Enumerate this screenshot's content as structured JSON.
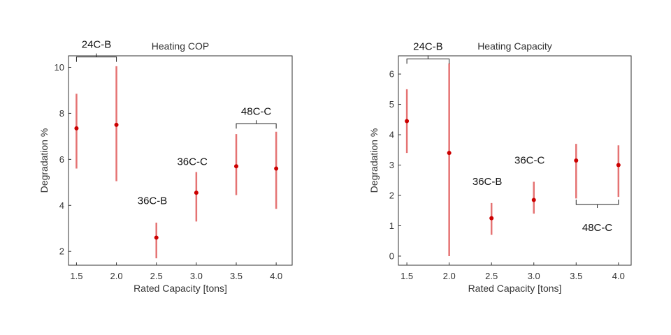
{
  "chart_data": [
    {
      "type": "scatter",
      "title": "Heating COP",
      "xlabel": "Rated Capacity [tons]",
      "ylabel": "Degradation %",
      "xlim": [
        1.4,
        4.2
      ],
      "ylim": [
        1.4,
        10.5
      ],
      "xticks": [
        "1.5",
        "2.0",
        "2.5",
        "3.0",
        "3.5",
        "4.0"
      ],
      "yticks": [
        "2",
        "4",
        "6",
        "8",
        "10"
      ],
      "grid": false,
      "legend": "none",
      "colors": {
        "errorbar": "#e57373",
        "point": "#cc0000"
      },
      "series": [
        {
          "x": [
            1.5,
            2.0,
            2.5,
            3.0,
            3.5,
            4.0
          ],
          "y": [
            7.35,
            7.5,
            2.6,
            4.55,
            5.7,
            5.6
          ],
          "y_low": [
            5.6,
            5.05,
            1.7,
            3.3,
            4.45,
            3.85
          ],
          "y_high": [
            8.85,
            10.05,
            3.25,
            5.45,
            7.1,
            7.2
          ]
        }
      ],
      "annotations": [
        {
          "text": "24C-B",
          "x_from": 1.5,
          "x_to": 2.0,
          "y": 10.45,
          "bracket": "top"
        },
        {
          "text": "36C-B",
          "x": 2.45,
          "y": 4.05
        },
        {
          "text": "36C-C",
          "x": 2.95,
          "y": 5.75
        },
        {
          "text": "48C-C",
          "x_from": 3.5,
          "x_to": 4.0,
          "y": 7.55,
          "bracket": "top"
        }
      ]
    },
    {
      "type": "scatter",
      "title": "Heating Capacity",
      "xlabel": "Rated Capacity [tons]",
      "ylabel": "Degradation %",
      "xlim": [
        1.4,
        4.15
      ],
      "ylim": [
        -0.3,
        6.6
      ],
      "xticks": [
        "1.5",
        "2.0",
        "2.5",
        "3.0",
        "3.5",
        "4.0"
      ],
      "yticks": [
        "0",
        "1",
        "2",
        "3",
        "4",
        "5",
        "6"
      ],
      "grid": false,
      "legend": "none",
      "colors": {
        "errorbar": "#e57373",
        "point": "#cc0000"
      },
      "series": [
        {
          "x": [
            1.5,
            2.0,
            2.5,
            3.0,
            3.5,
            4.0
          ],
          "y": [
            4.45,
            3.4,
            1.25,
            1.85,
            3.15,
            3.0
          ],
          "y_low": [
            3.4,
            0.0,
            0.7,
            1.4,
            1.9,
            1.95
          ],
          "y_high": [
            5.5,
            6.35,
            1.75,
            2.45,
            3.7,
            3.65
          ]
        }
      ],
      "annotations": [
        {
          "text": "24C-B",
          "x_from": 1.5,
          "x_to": 2.0,
          "y": 6.5,
          "bracket": "top"
        },
        {
          "text": "36C-B",
          "x": 2.45,
          "y": 2.35
        },
        {
          "text": "36C-C",
          "x": 2.95,
          "y": 3.05
        },
        {
          "text": "48C-C",
          "x_from": 3.5,
          "x_to": 4.0,
          "y": 1.7,
          "bracket": "bottom"
        }
      ]
    }
  ]
}
